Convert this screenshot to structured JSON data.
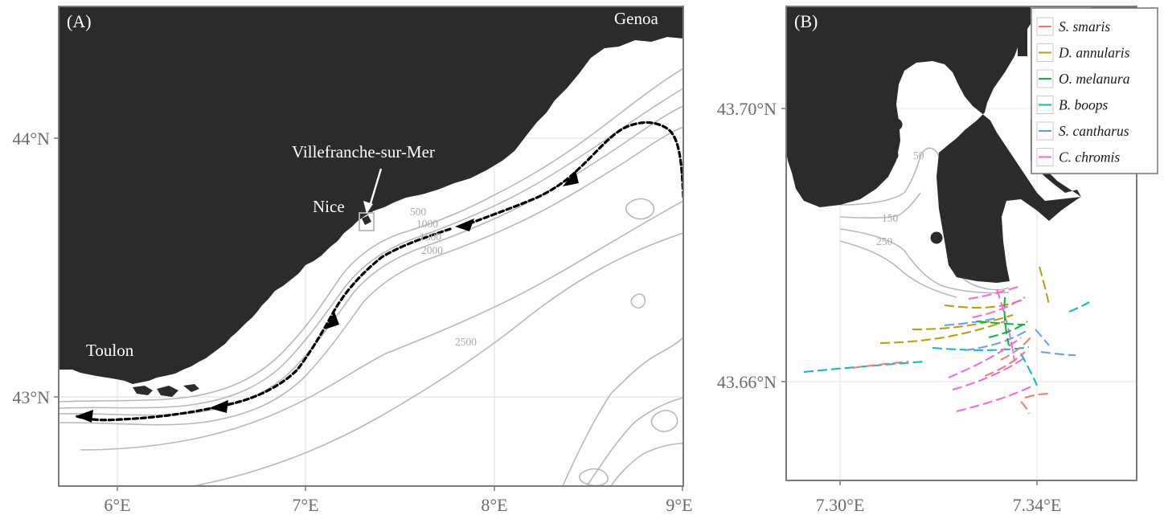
{
  "colors": {
    "land": "#2b2b2b",
    "sea": "#ffffff",
    "isobath": "#b8b8b8",
    "grid": "#dcdcdc",
    "frame": "#7a7a7a",
    "route": "#000000"
  },
  "panel_a": {
    "label": "(A)",
    "x_ticks": [
      "6°E",
      "7°E",
      "8°E",
      "9°E"
    ],
    "y_ticks": [
      "44°N",
      "43°N"
    ],
    "places": {
      "genoa": "Genoa",
      "nice": "Nice",
      "villefranche": "Villefranche-sur-Mer",
      "toulon": "Toulon"
    },
    "isobaths": [
      "500",
      "1000",
      "1500",
      "2000",
      "2500"
    ]
  },
  "panel_b": {
    "label": "(B)",
    "x_ticks": [
      "7.30°E",
      "7.34°E"
    ],
    "y_ticks": [
      "43.70°N",
      "43.66°N"
    ],
    "isobaths": [
      "50",
      "150",
      "250"
    ],
    "legend": [
      {
        "name": "S. smaris",
        "color": "#f8766d"
      },
      {
        "name": "D. annularis",
        "color": "#b79f00"
      },
      {
        "name": "O. melanura",
        "color": "#00ba38"
      },
      {
        "name": "B. boops",
        "color": "#00bfc4"
      },
      {
        "name": "S. cantharus",
        "color": "#619cff"
      },
      {
        "name": "C. chromis",
        "color": "#f564e3"
      }
    ]
  }
}
